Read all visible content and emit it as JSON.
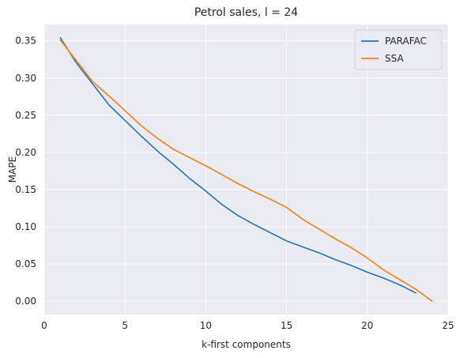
{
  "chart_data": {
    "type": "line",
    "title": "Petrol sales, l = 24",
    "xlabel": "k-first components",
    "ylabel": "MAPE",
    "xlim": [
      0,
      25
    ],
    "ylim": [
      -0.018,
      0.372
    ],
    "xticks": [
      0,
      5,
      10,
      15,
      20,
      25
    ],
    "yticks": [
      0.0,
      0.05,
      0.1,
      0.15,
      0.2,
      0.25,
      0.3,
      0.35
    ],
    "grid": true,
    "legend_position": "top-right",
    "series": [
      {
        "name": "PARAFAC",
        "color": "#1f77b4",
        "x": [
          1,
          2,
          3,
          4,
          5,
          6,
          7,
          8,
          9,
          10,
          11,
          12,
          13,
          14,
          15,
          16,
          17,
          18,
          19,
          20,
          21,
          22,
          23
        ],
        "values": [
          0.354,
          0.32,
          0.292,
          0.264,
          0.243,
          0.222,
          0.202,
          0.184,
          0.165,
          0.148,
          0.13,
          0.115,
          0.103,
          0.092,
          0.081,
          0.073,
          0.065,
          0.056,
          0.048,
          0.039,
          0.031,
          0.022,
          0.011
        ]
      },
      {
        "name": "SSA",
        "color": "#ff7f0e",
        "x": [
          1,
          2,
          3,
          4,
          5,
          6,
          7,
          8,
          9,
          10,
          11,
          12,
          13,
          14,
          15,
          16,
          17,
          18,
          19,
          20,
          21,
          22,
          23,
          24
        ],
        "values": [
          0.351,
          0.323,
          0.295,
          0.276,
          0.256,
          0.236,
          0.219,
          0.204,
          0.193,
          0.182,
          0.17,
          0.158,
          0.147,
          0.137,
          0.126,
          0.11,
          0.097,
          0.084,
          0.072,
          0.058,
          0.042,
          0.029,
          0.016,
          0.0
        ]
      }
    ]
  }
}
